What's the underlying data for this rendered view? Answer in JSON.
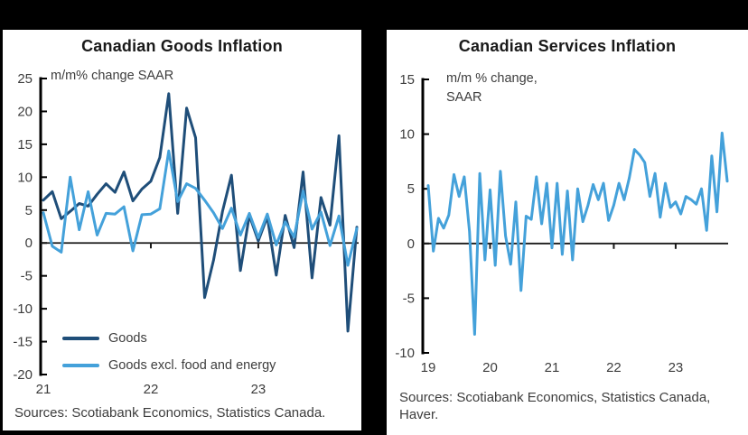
{
  "window": {
    "background": "#000000"
  },
  "charts": [
    {
      "title": "Canadian Goods Inflation",
      "axis_note_lines": [
        "m/m% change SAAR"
      ],
      "sources": "Sources: Scotiabank Economics, Statistics Canada.",
      "chart_data": {
        "type": "line",
        "title": "Canadian Goods Inflation",
        "ylabel": "m/m% change SAAR",
        "x_frequency": "monthly",
        "x_range": [
          "2021-01",
          "2023-12"
        ],
        "x_tick_labels": [
          "21",
          "22",
          "23"
        ],
        "x_tick_indices": [
          0,
          12,
          24
        ],
        "ylim": [
          -20,
          25
        ],
        "y_ticks": [
          25,
          20,
          15,
          10,
          5,
          0,
          -5,
          -10,
          -15,
          -20
        ],
        "grid": false,
        "legend_position": "inside-bottom-left",
        "series": [
          {
            "name": "Goods",
            "color": "#1F4E79",
            "values": [
              6.5,
              7.8,
              3.7,
              4.8,
              6.0,
              5.6,
              7.4,
              9.0,
              7.7,
              10.8,
              6.4,
              8.2,
              9.4,
              13.0,
              22.7,
              4.5,
              20.5,
              16.0,
              -8.3,
              -2.6,
              4.8,
              10.3,
              -4.2,
              4.2,
              0.3,
              4.0,
              -4.9,
              4.2,
              -0.7,
              10.8,
              -5.3,
              6.9,
              2.7,
              16.3,
              -13.4,
              2.4
            ]
          },
          {
            "name": "Goods excl. food and energy",
            "color": "#44A1DA",
            "values": [
              4.6,
              -0.5,
              -1.4,
              10.0,
              2.0,
              7.8,
              1.2,
              4.5,
              4.4,
              5.5,
              -1.2,
              4.3,
              4.4,
              5.2,
              14.0,
              6.3,
              9.0,
              8.3,
              6.5,
              4.6,
              2.2,
              5.3,
              1.2,
              4.5,
              0.8,
              4.4,
              -0.3,
              3.2,
              0.9,
              7.9,
              2.1,
              4.7,
              -0.4,
              4.1,
              -3.4,
              2.2
            ]
          }
        ]
      }
    },
    {
      "title": "Canadian Services Inflation",
      "axis_note_lines": [
        "m/m % change,",
        "SAAR"
      ],
      "sources": "Sources: Scotiabank Economics, Statistics Canada, Haver.",
      "chart_data": {
        "type": "line",
        "title": "Canadian Services Inflation",
        "ylabel": "m/m % change, SAAR",
        "x_frequency": "monthly",
        "x_range": [
          "2019-01",
          "2023-11"
        ],
        "x_tick_labels": [
          "19",
          "20",
          "21",
          "22",
          "23"
        ],
        "x_tick_indices": [
          0,
          12,
          24,
          36,
          48
        ],
        "ylim": [
          -10,
          15
        ],
        "y_ticks": [
          15,
          10,
          5,
          0,
          -5,
          -10
        ],
        "grid": false,
        "legend_position": "none",
        "series": [
          {
            "name": "Services",
            "color": "#44A1DA",
            "values": [
              5.3,
              -0.7,
              2.3,
              1.4,
              2.6,
              6.3,
              4.3,
              6.1,
              1.1,
              -8.3,
              6.4,
              -1.5,
              4.9,
              -2.0,
              6.6,
              0.7,
              -1.9,
              3.8,
              -4.3,
              2.5,
              2.2,
              6.1,
              1.8,
              5.5,
              -0.4,
              5.5,
              -1.0,
              4.8,
              -1.5,
              5.0,
              2.0,
              3.5,
              5.4,
              4.0,
              5.5,
              2.1,
              3.5,
              5.5,
              4.0,
              6.0,
              8.6,
              8.1,
              7.4,
              4.3,
              6.4,
              2.4,
              5.5,
              3.3,
              3.8,
              2.7,
              4.3,
              4.0,
              3.6,
              5.0,
              1.2,
              8.0,
              2.9,
              10.1,
              5.7
            ]
          }
        ]
      }
    }
  ]
}
